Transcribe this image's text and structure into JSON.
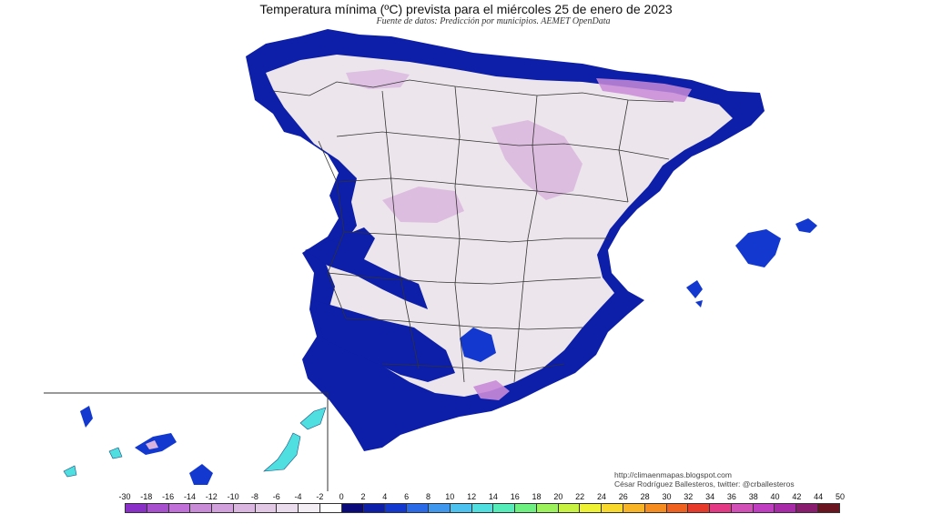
{
  "header": {
    "title": "Temperatura mínima (ºC) prevista para el miércoles 25 de enero de 2023",
    "subtitle": "Fuente de datos: Predicción por municipios. AEMET OpenData"
  },
  "credits": {
    "blog": "http://climaenmapas.blogspot.com",
    "author": "César Rodríguez Ballesteros, twitter: @crballesteros"
  },
  "legend": {
    "labels": [
      "-30",
      "-18",
      "-16",
      "-14",
      "-12",
      "-10",
      "-8",
      "-6",
      "-4",
      "-2",
      "0",
      "2",
      "4",
      "6",
      "8",
      "10",
      "12",
      "14",
      "16",
      "18",
      "20",
      "22",
      "24",
      "26",
      "28",
      "30",
      "32",
      "34",
      "36",
      "38",
      "40",
      "42",
      "44",
      "50"
    ],
    "colors": [
      "#8a2fc8",
      "#a84fd0",
      "#c070d8",
      "#c98ad8",
      "#d2a0dc",
      "#dab6e0",
      "#e2c8e4",
      "#eadcec",
      "#f3eef4",
      "#ffffff",
      "#0b0a7a",
      "#0d1fa8",
      "#1238d0",
      "#2a6ae8",
      "#3f98ee",
      "#4cc2f0",
      "#4fdfe0",
      "#54ecb8",
      "#6ef080",
      "#9cf25a",
      "#c8f242",
      "#eef032",
      "#f8d82a",
      "#f8b424",
      "#f68c20",
      "#f0601e",
      "#e83a2a",
      "#e43a86",
      "#d24fb8",
      "#c03cc0",
      "#a82aa8",
      "#8a1c70",
      "#6a1420"
    ]
  },
  "map": {
    "region": "España peninsular, Baleares y Canarias",
    "colors": {
      "land": "#ece6ec",
      "cold": "#d9b3dc",
      "coast": "#0d1fa8",
      "coastLight": "#1238d0",
      "canaryCyan": "#4fdfe0"
    }
  }
}
